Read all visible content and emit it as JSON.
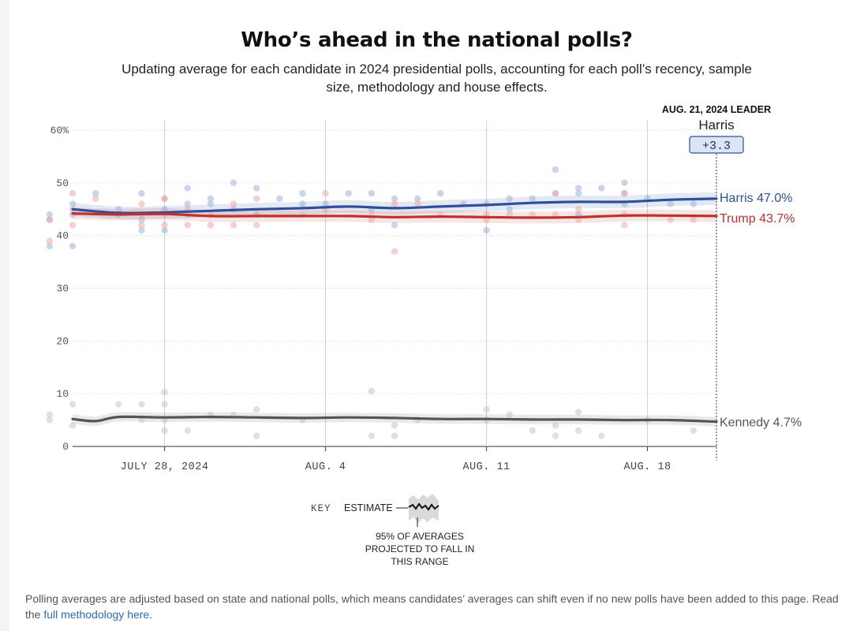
{
  "title": "Who’s ahead in the national polls?",
  "subtitle": "Updating average for each candidate in 2024 presidential polls, accounting for each poll’s recency, sample size, methodology and house effects.",
  "leader_box": {
    "heading": "AUG. 21, 2024 LEADER",
    "name": "Harris",
    "margin": "+3.3"
  },
  "key": {
    "label": "KEY",
    "estimate": "ESTIMATE",
    "range_note": [
      "95% OF AVERAGES",
      "PROJECTED TO FALL IN",
      "THIS RANGE"
    ]
  },
  "footnote": {
    "text": "Polling averages are adjusted based on state and national polls, which means candidates’ averages can shift even if no new polls have been added to this page. Read the ",
    "link": "full methodology here",
    "tail": "."
  },
  "chart_data": {
    "type": "line",
    "x_start": "2024-07-24",
    "x_end": "2024-08-21",
    "x_ticks": [
      {
        "date": "2024-07-28",
        "label": "JULY 28, 2024"
      },
      {
        "date": "2024-08-04",
        "label": "AUG. 4"
      },
      {
        "date": "2024-08-11",
        "label": "AUG. 11"
      },
      {
        "date": "2024-08-18",
        "label": "AUG. 18"
      }
    ],
    "y_ticks": [
      {
        "value": 0,
        "label": "0"
      },
      {
        "value": 10,
        "label": "10"
      },
      {
        "value": 20,
        "label": "20"
      },
      {
        "value": 30,
        "label": "30"
      },
      {
        "value": 40,
        "label": "40"
      },
      {
        "value": 50,
        "label": "50"
      },
      {
        "value": 60,
        "label": "60%"
      }
    ],
    "ylim": [
      0,
      60
    ],
    "grid": true,
    "series": [
      {
        "name": "Harris",
        "end_label": "Harris 47.0%",
        "color": "#2c4f9e",
        "point_color": "#9fb2dd",
        "band": 1.2,
        "x": [
          "2024-07-24",
          "2024-07-26",
          "2024-07-28",
          "2024-07-30",
          "2024-08-01",
          "2024-08-03",
          "2024-08-05",
          "2024-08-07",
          "2024-08-09",
          "2024-08-11",
          "2024-08-13",
          "2024-08-15",
          "2024-08-17",
          "2024-08-19",
          "2024-08-21"
        ],
        "values": [
          45.0,
          44.3,
          44.4,
          44.7,
          45.0,
          45.2,
          45.5,
          45.2,
          45.5,
          45.8,
          46.2,
          46.4,
          46.4,
          46.8,
          47.0
        ],
        "polls": [
          [
            "2024-07-23",
            44
          ],
          [
            "2024-07-23",
            38
          ],
          [
            "2024-07-23",
            43
          ],
          [
            "2024-07-24",
            46
          ],
          [
            "2024-07-24",
            44
          ],
          [
            "2024-07-24",
            38
          ],
          [
            "2024-07-25",
            48
          ],
          [
            "2024-07-26",
            44
          ],
          [
            "2024-07-26",
            45
          ],
          [
            "2024-07-27",
            48
          ],
          [
            "2024-07-27",
            43
          ],
          [
            "2024-07-27",
            41
          ],
          [
            "2024-07-28",
            47
          ],
          [
            "2024-07-28",
            45
          ],
          [
            "2024-07-28",
            41
          ],
          [
            "2024-07-29",
            49
          ],
          [
            "2024-07-29",
            46
          ],
          [
            "2024-07-29",
            44
          ],
          [
            "2024-07-30",
            47
          ],
          [
            "2024-07-30",
            46
          ],
          [
            "2024-07-31",
            50
          ],
          [
            "2024-07-31",
            45
          ],
          [
            "2024-08-01",
            49
          ],
          [
            "2024-08-01",
            44
          ],
          [
            "2024-08-02",
            47
          ],
          [
            "2024-08-03",
            46
          ],
          [
            "2024-08-03",
            48
          ],
          [
            "2024-08-04",
            46
          ],
          [
            "2024-08-05",
            48
          ],
          [
            "2024-08-06",
            48
          ],
          [
            "2024-08-06",
            45
          ],
          [
            "2024-08-07",
            47
          ],
          [
            "2024-08-07",
            42
          ],
          [
            "2024-08-08",
            47
          ],
          [
            "2024-08-09",
            48
          ],
          [
            "2024-08-10",
            46
          ],
          [
            "2024-08-11",
            46
          ],
          [
            "2024-08-11",
            41
          ],
          [
            "2024-08-12",
            47
          ],
          [
            "2024-08-12",
            45
          ],
          [
            "2024-08-13",
            47
          ],
          [
            "2024-08-14",
            52.5
          ],
          [
            "2024-08-14",
            48
          ],
          [
            "2024-08-15",
            49
          ],
          [
            "2024-08-15",
            48
          ],
          [
            "2024-08-15",
            44
          ],
          [
            "2024-08-16",
            49
          ],
          [
            "2024-08-17",
            50
          ],
          [
            "2024-08-17",
            48
          ],
          [
            "2024-08-17",
            46
          ],
          [
            "2024-08-18",
            47
          ],
          [
            "2024-08-19",
            46
          ],
          [
            "2024-08-20",
            46
          ]
        ]
      },
      {
        "name": "Trump",
        "end_label": "Trump 43.7%",
        "color": "#c0312b",
        "point_color": "#eeaaa5",
        "band": 1.1,
        "x": [
          "2024-07-24",
          "2024-07-26",
          "2024-07-28",
          "2024-07-30",
          "2024-08-01",
          "2024-08-03",
          "2024-08-05",
          "2024-08-07",
          "2024-08-09",
          "2024-08-11",
          "2024-08-13",
          "2024-08-15",
          "2024-08-17",
          "2024-08-19",
          "2024-08-21"
        ],
        "values": [
          44.2,
          44.0,
          44.1,
          43.7,
          43.7,
          43.7,
          43.7,
          43.5,
          43.6,
          43.5,
          43.4,
          43.5,
          43.8,
          43.8,
          43.7
        ],
        "polls": [
          [
            "2024-07-23",
            39
          ],
          [
            "2024-07-23",
            43
          ],
          [
            "2024-07-24",
            48
          ],
          [
            "2024-07-24",
            45
          ],
          [
            "2024-07-24",
            42
          ],
          [
            "2024-07-25",
            47
          ],
          [
            "2024-07-26",
            44
          ],
          [
            "2024-07-27",
            46
          ],
          [
            "2024-07-27",
            44
          ],
          [
            "2024-07-27",
            42
          ],
          [
            "2024-07-28",
            47
          ],
          [
            "2024-07-28",
            44
          ],
          [
            "2024-07-28",
            42
          ],
          [
            "2024-07-29",
            45
          ],
          [
            "2024-07-29",
            42
          ],
          [
            "2024-07-30",
            44
          ],
          [
            "2024-07-30",
            42
          ],
          [
            "2024-07-31",
            46
          ],
          [
            "2024-07-31",
            42
          ],
          [
            "2024-08-01",
            47
          ],
          [
            "2024-08-01",
            44
          ],
          [
            "2024-08-01",
            42
          ],
          [
            "2024-08-03",
            44
          ],
          [
            "2024-08-04",
            48
          ],
          [
            "2024-08-04",
            45
          ],
          [
            "2024-08-06",
            44
          ],
          [
            "2024-08-06",
            43
          ],
          [
            "2024-08-07",
            46
          ],
          [
            "2024-08-07",
            37
          ],
          [
            "2024-08-08",
            46
          ],
          [
            "2024-08-09",
            44
          ],
          [
            "2024-08-11",
            44
          ],
          [
            "2024-08-11",
            43
          ],
          [
            "2024-08-12",
            44
          ],
          [
            "2024-08-13",
            44
          ],
          [
            "2024-08-14",
            48
          ],
          [
            "2024-08-14",
            44
          ],
          [
            "2024-08-15",
            45
          ],
          [
            "2024-08-15",
            43
          ],
          [
            "2024-08-17",
            48
          ],
          [
            "2024-08-17",
            44
          ],
          [
            "2024-08-17",
            42
          ],
          [
            "2024-08-19",
            43
          ],
          [
            "2024-08-20",
            43
          ]
        ]
      },
      {
        "name": "Kennedy",
        "end_label": "Kennedy 4.7%",
        "color": "#555555",
        "point_color": "#c6c6c6",
        "band": 0.9,
        "x": [
          "2024-07-24",
          "2024-07-25",
          "2024-07-26",
          "2024-07-28",
          "2024-07-30",
          "2024-08-01",
          "2024-08-03",
          "2024-08-05",
          "2024-08-07",
          "2024-08-09",
          "2024-08-11",
          "2024-08-13",
          "2024-08-15",
          "2024-08-17",
          "2024-08-19",
          "2024-08-21"
        ],
        "values": [
          5.2,
          4.8,
          5.6,
          5.5,
          5.6,
          5.5,
          5.4,
          5.5,
          5.4,
          5.2,
          5.2,
          5.1,
          5.1,
          5.0,
          5.0,
          4.7
        ],
        "polls": [
          [
            "2024-07-23",
            6
          ],
          [
            "2024-07-23",
            5
          ],
          [
            "2024-07-24",
            8
          ],
          [
            "2024-07-24",
            4
          ],
          [
            "2024-07-26",
            8
          ],
          [
            "2024-07-27",
            8
          ],
          [
            "2024-07-27",
            5
          ],
          [
            "2024-07-28",
            10.3
          ],
          [
            "2024-07-28",
            8
          ],
          [
            "2024-07-28",
            5
          ],
          [
            "2024-07-28",
            3
          ],
          [
            "2024-07-29",
            3
          ],
          [
            "2024-07-30",
            6
          ],
          [
            "2024-07-31",
            6
          ],
          [
            "2024-08-01",
            7
          ],
          [
            "2024-08-01",
            2
          ],
          [
            "2024-08-03",
            5
          ],
          [
            "2024-08-06",
            10.5
          ],
          [
            "2024-08-06",
            2
          ],
          [
            "2024-08-07",
            4
          ],
          [
            "2024-08-07",
            2
          ],
          [
            "2024-08-08",
            5
          ],
          [
            "2024-08-11",
            7
          ],
          [
            "2024-08-11",
            5
          ],
          [
            "2024-08-12",
            6
          ],
          [
            "2024-08-13",
            3
          ],
          [
            "2024-08-14",
            2
          ],
          [
            "2024-08-14",
            4
          ],
          [
            "2024-08-15",
            6.5
          ],
          [
            "2024-08-15",
            3
          ],
          [
            "2024-08-16",
            2
          ],
          [
            "2024-08-18",
            5
          ],
          [
            "2024-08-20",
            3
          ]
        ]
      }
    ]
  }
}
